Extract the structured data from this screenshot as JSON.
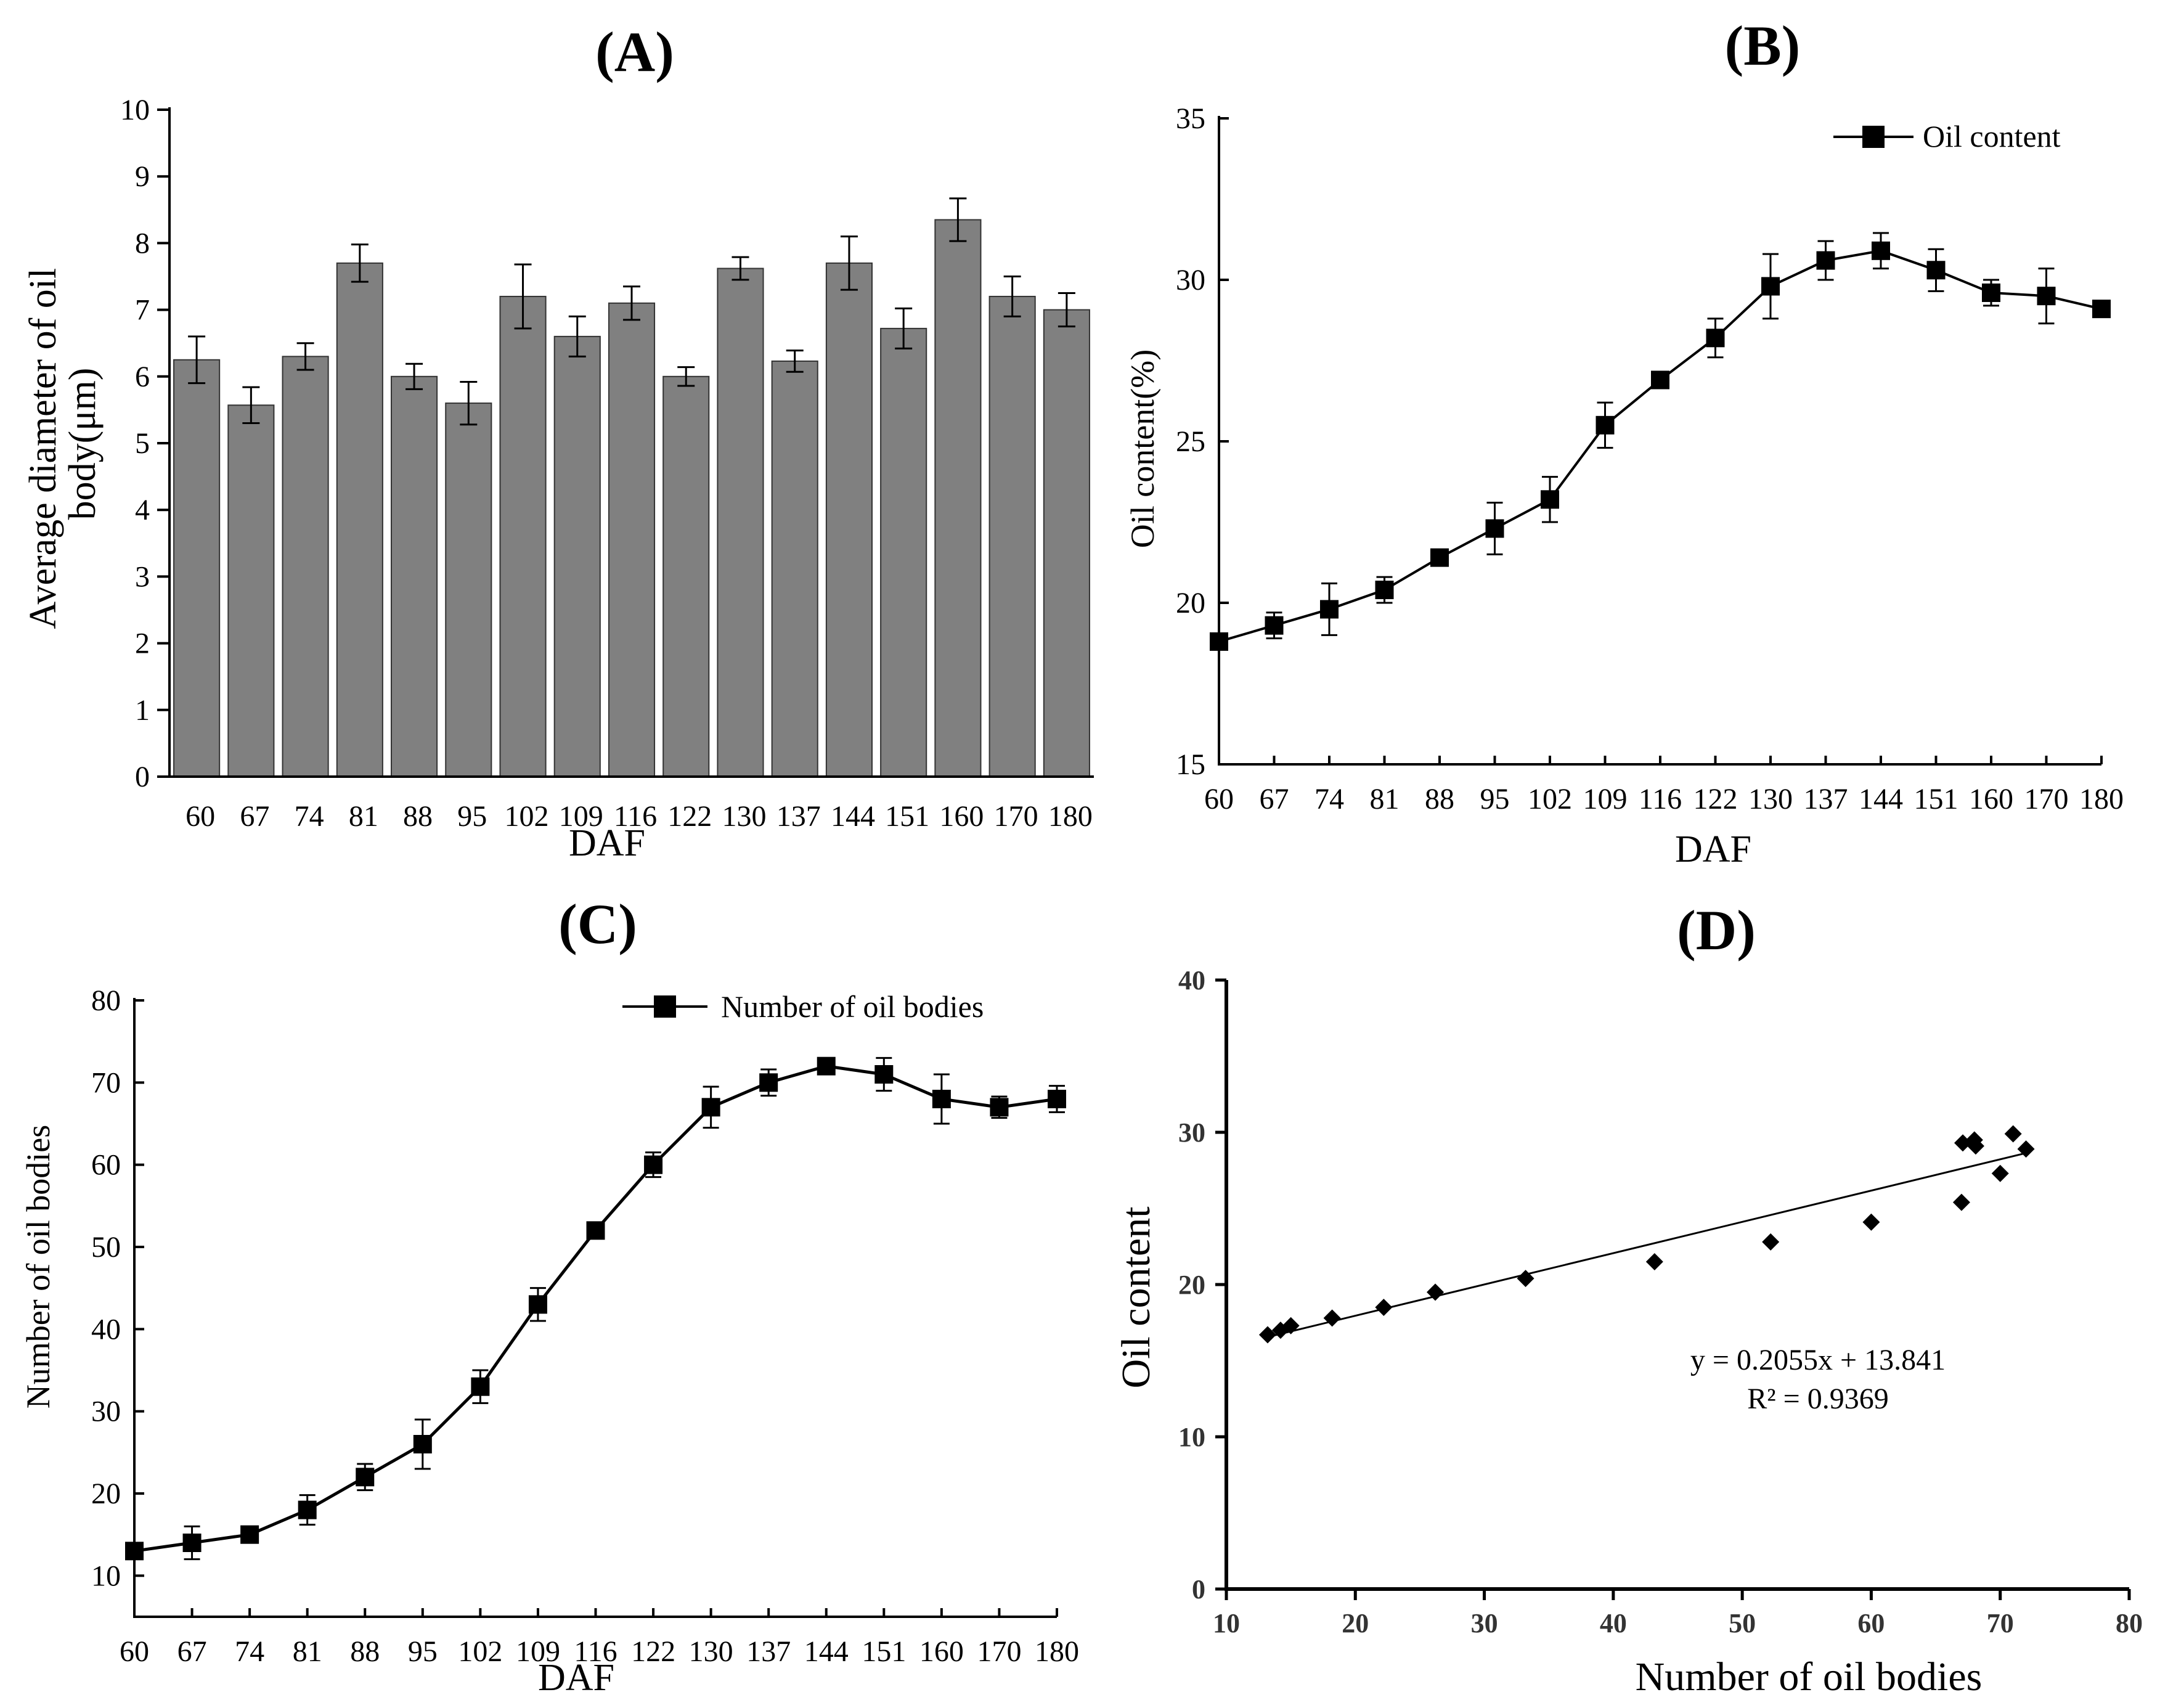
{
  "chart_data": [
    {
      "id": "A",
      "type": "bar",
      "title": "(A)",
      "xlabel": "DAF",
      "ylabel": "Average diameter of oil body(μm)",
      "categories": [
        "60",
        "67",
        "74",
        "81",
        "88",
        "95",
        "102",
        "109",
        "116",
        "122",
        "130",
        "137",
        "144",
        "151",
        "160",
        "170",
        "180"
      ],
      "values": [
        6.25,
        5.57,
        6.3,
        7.7,
        6.0,
        5.6,
        7.2,
        6.6,
        7.1,
        6.0,
        7.62,
        6.23,
        7.7,
        6.72,
        8.35,
        7.2,
        7.0
      ],
      "errors": [
        0.35,
        0.27,
        0.2,
        0.28,
        0.19,
        0.32,
        0.48,
        0.3,
        0.25,
        0.14,
        0.17,
        0.16,
        0.4,
        0.3,
        0.32,
        0.3,
        0.25
      ],
      "ylim": [
        0,
        10
      ],
      "yticks": [
        0,
        1,
        2,
        3,
        4,
        5,
        6,
        7,
        8,
        9,
        10
      ],
      "bar_color": "#808080"
    },
    {
      "id": "B",
      "type": "line",
      "title": "(B)",
      "xlabel": "DAF",
      "ylabel": "Oil content(%)",
      "categories": [
        "60",
        "67",
        "74",
        "81",
        "88",
        "95",
        "102",
        "109",
        "116",
        "122",
        "130",
        "137",
        "144",
        "151",
        "160",
        "170",
        "180"
      ],
      "series": [
        {
          "name": "Oil content",
          "values": [
            18.8,
            19.3,
            19.8,
            20.4,
            21.4,
            22.3,
            23.2,
            25.5,
            26.9,
            28.2,
            29.8,
            30.6,
            30.9,
            30.3,
            29.6,
            29.5,
            29.1
          ],
          "errors": [
            0.15,
            0.4,
            0.8,
            0.4,
            0.15,
            0.8,
            0.7,
            0.7,
            0.25,
            0.6,
            1.0,
            0.6,
            0.55,
            0.65,
            0.4,
            0.85,
            0.1
          ]
        }
      ],
      "ylim": [
        15,
        35
      ],
      "yticks": [
        15,
        20,
        25,
        30,
        35
      ],
      "legend_position": "top-right"
    },
    {
      "id": "C",
      "type": "line",
      "title": "(C)",
      "xlabel": "DAF",
      "ylabel": "Number of oil bodies",
      "categories": [
        "60",
        "67",
        "74",
        "81",
        "88",
        "95",
        "102",
        "109",
        "116",
        "122",
        "130",
        "137",
        "144",
        "151",
        "160",
        "170",
        "180"
      ],
      "series": [
        {
          "name": "Number of oil bodies",
          "values": [
            13,
            14,
            15,
            18,
            22,
            26,
            33,
            43,
            52,
            60,
            67,
            70,
            72,
            71,
            68,
            67,
            68
          ],
          "errors": [
            0.8,
            2.0,
            0.9,
            1.8,
            1.6,
            3.0,
            2.0,
            2.0,
            0.5,
            1.5,
            2.5,
            1.6,
            0.4,
            2.0,
            3.0,
            1.3,
            1.6
          ]
        }
      ],
      "ylim": [
        5,
        80
      ],
      "yticks": [
        10,
        20,
        30,
        40,
        50,
        60,
        70,
        80
      ],
      "legend_position": "top-right"
    },
    {
      "id": "D",
      "type": "scatter",
      "title": "(D)",
      "xlabel": "Number of oil bodies",
      "ylabel": "Oil content",
      "points": [
        [
          13.2,
          16.7
        ],
        [
          14.2,
          17.0
        ],
        [
          15.0,
          17.3
        ],
        [
          18.2,
          17.8
        ],
        [
          22.2,
          18.5
        ],
        [
          26.2,
          19.5
        ],
        [
          33.2,
          20.4
        ],
        [
          43.2,
          21.5
        ],
        [
          52.2,
          22.8
        ],
        [
          60.0,
          24.1
        ],
        [
          67.0,
          25.4
        ],
        [
          67.1,
          29.3
        ],
        [
          68.0,
          29.5
        ],
        [
          68.1,
          29.1
        ],
        [
          70.0,
          27.3
        ],
        [
          71.0,
          29.9
        ],
        [
          72.0,
          28.9
        ]
      ],
      "trendline": {
        "slope": 0.2055,
        "intercept": 13.841,
        "x_range": [
          13,
          72
        ]
      },
      "annotation_equation": "y = 0.2055x + 13.841",
      "annotation_r2": "R² = 0.9369",
      "xlim": [
        10,
        80
      ],
      "ylim": [
        0,
        40
      ],
      "xticks": [
        10,
        20,
        30,
        40,
        50,
        60,
        70,
        80
      ],
      "yticks": [
        0,
        10,
        20,
        30,
        40
      ]
    }
  ]
}
